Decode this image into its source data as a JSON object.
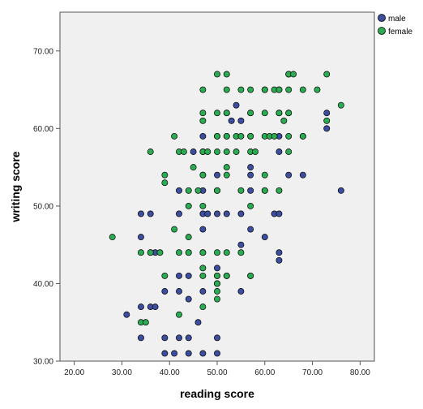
{
  "chart_data": {
    "type": "scatter",
    "xlabel": "reading score",
    "ylabel": "writing score",
    "xlim": [
      17,
      83
    ],
    "ylim": [
      30,
      75
    ],
    "x_ticks": [
      "20.00",
      "30.00",
      "40.00",
      "50.00",
      "60.00",
      "70.00",
      "80.00"
    ],
    "y_ticks": [
      "30.00",
      "40.00",
      "50.00",
      "60.00",
      "70.00"
    ],
    "grid": false,
    "legend_position": "top-right",
    "series": [
      {
        "name": "male",
        "color": "#3d4ea0",
        "points": [
          [
            31,
            36
          ],
          [
            34,
            33
          ],
          [
            34,
            37
          ],
          [
            34,
            46
          ],
          [
            34,
            49
          ],
          [
            36,
            37
          ],
          [
            36,
            44
          ],
          [
            36,
            49
          ],
          [
            37,
            44
          ],
          [
            37,
            37
          ],
          [
            39,
            31
          ],
          [
            39,
            33
          ],
          [
            39,
            39
          ],
          [
            41,
            31
          ],
          [
            42,
            33
          ],
          [
            42,
            39
          ],
          [
            42,
            41
          ],
          [
            42,
            49
          ],
          [
            42,
            52
          ],
          [
            44,
            31
          ],
          [
            44,
            33
          ],
          [
            44,
            38
          ],
          [
            44,
            41
          ],
          [
            44,
            44
          ],
          [
            46,
            35
          ],
          [
            47,
            31
          ],
          [
            47,
            39
          ],
          [
            47,
            44
          ],
          [
            47,
            47
          ],
          [
            47,
            49
          ],
          [
            47,
            52
          ],
          [
            47,
            54
          ],
          [
            47,
            57
          ],
          [
            47,
            59
          ],
          [
            48,
            49
          ],
          [
            50,
            31
          ],
          [
            50,
            33
          ],
          [
            50,
            40
          ],
          [
            50,
            41
          ],
          [
            50,
            42
          ],
          [
            50,
            49
          ],
          [
            50,
            52
          ],
          [
            50,
            54
          ],
          [
            50,
            59
          ],
          [
            52,
            41
          ],
          [
            52,
            49
          ],
          [
            52,
            59
          ],
          [
            52,
            62
          ],
          [
            53,
            61
          ],
          [
            54,
            63
          ],
          [
            55,
            39
          ],
          [
            55,
            45
          ],
          [
            55,
            49
          ],
          [
            55,
            61
          ],
          [
            57,
            41
          ],
          [
            57,
            47
          ],
          [
            57,
            52
          ],
          [
            57,
            54
          ],
          [
            57,
            55
          ],
          [
            57,
            59
          ],
          [
            57,
            62
          ],
          [
            60,
            46
          ],
          [
            60,
            52
          ],
          [
            60,
            65
          ],
          [
            62,
            49
          ],
          [
            63,
            43
          ],
          [
            63,
            44
          ],
          [
            63,
            49
          ],
          [
            63,
            57
          ],
          [
            63,
            59
          ],
          [
            63,
            62
          ],
          [
            63,
            65
          ],
          [
            65,
            54
          ],
          [
            65,
            62
          ],
          [
            65,
            67
          ],
          [
            68,
            54
          ],
          [
            68,
            59
          ],
          [
            73,
            60
          ],
          [
            73,
            62
          ],
          [
            76,
            52
          ],
          [
            45,
            57
          ]
        ]
      },
      {
        "name": "female",
        "color": "#2bac53",
        "points": [
          [
            28,
            46
          ],
          [
            34,
            35
          ],
          [
            34,
            44
          ],
          [
            35,
            35
          ],
          [
            36,
            44
          ],
          [
            36,
            57
          ],
          [
            38,
            44
          ],
          [
            39,
            41
          ],
          [
            39,
            53
          ],
          [
            39,
            54
          ],
          [
            41,
            47
          ],
          [
            41,
            59
          ],
          [
            42,
            36
          ],
          [
            42,
            44
          ],
          [
            42,
            57
          ],
          [
            43,
            57
          ],
          [
            44,
            44
          ],
          [
            44,
            46
          ],
          [
            44,
            50
          ],
          [
            44,
            52
          ],
          [
            45,
            55
          ],
          [
            46,
            52
          ],
          [
            47,
            37
          ],
          [
            47,
            41
          ],
          [
            47,
            42
          ],
          [
            47,
            44
          ],
          [
            47,
            50
          ],
          [
            47,
            54
          ],
          [
            47,
            57
          ],
          [
            47,
            61
          ],
          [
            47,
            62
          ],
          [
            47,
            65
          ],
          [
            48,
            57
          ],
          [
            50,
            38
          ],
          [
            50,
            39
          ],
          [
            50,
            40
          ],
          [
            50,
            41
          ],
          [
            50,
            44
          ],
          [
            50,
            52
          ],
          [
            50,
            57
          ],
          [
            50,
            59
          ],
          [
            50,
            62
          ],
          [
            50,
            67
          ],
          [
            52,
            41
          ],
          [
            52,
            44
          ],
          [
            52,
            54
          ],
          [
            52,
            55
          ],
          [
            52,
            57
          ],
          [
            52,
            59
          ],
          [
            52,
            62
          ],
          [
            52,
            65
          ],
          [
            52,
            67
          ],
          [
            54,
            57
          ],
          [
            54,
            59
          ],
          [
            55,
            44
          ],
          [
            55,
            59
          ],
          [
            55,
            65
          ],
          [
            57,
            41
          ],
          [
            57,
            50
          ],
          [
            57,
            57
          ],
          [
            57,
            59
          ],
          [
            57,
            62
          ],
          [
            57,
            65
          ],
          [
            58,
            57
          ],
          [
            60,
            52
          ],
          [
            60,
            54
          ],
          [
            60,
            59
          ],
          [
            60,
            62
          ],
          [
            60,
            65
          ],
          [
            61,
            59
          ],
          [
            62,
            59
          ],
          [
            62,
            65
          ],
          [
            63,
            52
          ],
          [
            63,
            62
          ],
          [
            63,
            65
          ],
          [
            64,
            61
          ],
          [
            65,
            57
          ],
          [
            65,
            59
          ],
          [
            65,
            62
          ],
          [
            65,
            65
          ],
          [
            65,
            67
          ],
          [
            66,
            67
          ],
          [
            68,
            59
          ],
          [
            68,
            65
          ],
          [
            71,
            65
          ],
          [
            73,
            61
          ],
          [
            73,
            67
          ],
          [
            76,
            63
          ],
          [
            55,
            52
          ]
        ]
      }
    ]
  }
}
